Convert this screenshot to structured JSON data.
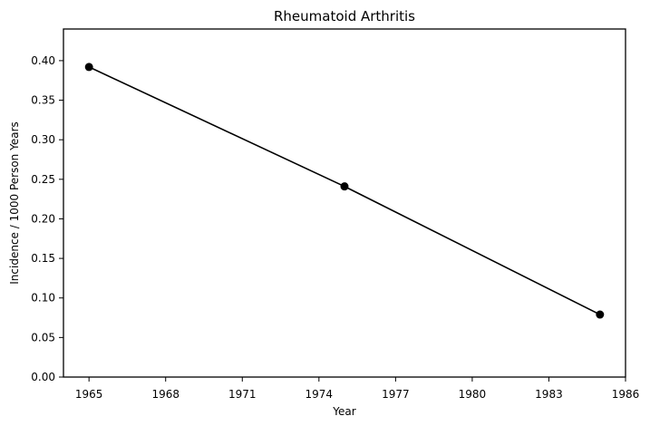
{
  "chart_data": {
    "type": "line",
    "title": "Rheumatoid Arthritis",
    "xlabel": "Year",
    "ylabel": "Incidence / 1000 Person Years",
    "x": [
      1965,
      1975,
      1985
    ],
    "series": [
      {
        "values": [
          0.392,
          0.241,
          0.079
        ],
        "color": "#000000",
        "marker": "circle"
      }
    ],
    "xlim": [
      1964,
      1986
    ],
    "ylim": [
      0.0,
      0.44
    ],
    "xticks": [
      "1965",
      "1968",
      "1971",
      "1974",
      "1977",
      "1980",
      "1983",
      "1986"
    ],
    "yticks": [
      "0.00",
      "0.05",
      "0.10",
      "0.15",
      "0.20",
      "0.25",
      "0.30",
      "0.35",
      "0.40"
    ],
    "grid": false,
    "legend": false
  }
}
